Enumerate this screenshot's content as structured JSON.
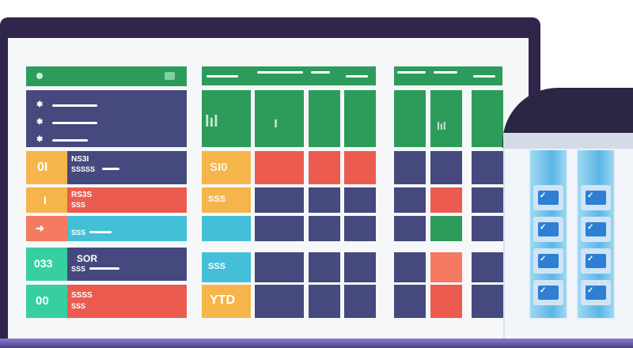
{
  "left_panel": {
    "header_icon": "circle-icon",
    "rows": [
      {
        "badge": "0I",
        "line1": "NS3I",
        "line2": "SSSSS"
      },
      {
        "badge": "I",
        "line1": "RS3S",
        "line2": "SSS"
      },
      {
        "badge": "",
        "line1": "",
        "line2": "SSS"
      },
      {
        "badge": "033",
        "line1": "SOR",
        "line2": "SSS"
      },
      {
        "badge": "00",
        "line1": "SSSS",
        "line2": "SSS"
      }
    ]
  },
  "mid_table": {
    "row_labels": [
      "SI0",
      "SSS",
      "",
      "SSS",
      "YTD"
    ],
    "chart_marks": [
      "lıl",
      "ı",
      "lıl"
    ]
  },
  "server": {
    "glyph": "✓"
  },
  "colors": {
    "navy": "#46497e",
    "green": "#2d9c5b",
    "red": "#eb5b50",
    "orange": "#f6b54a",
    "cyan": "#43c0d8",
    "teal": "#37cfa2",
    "bezel": "#30264c"
  }
}
